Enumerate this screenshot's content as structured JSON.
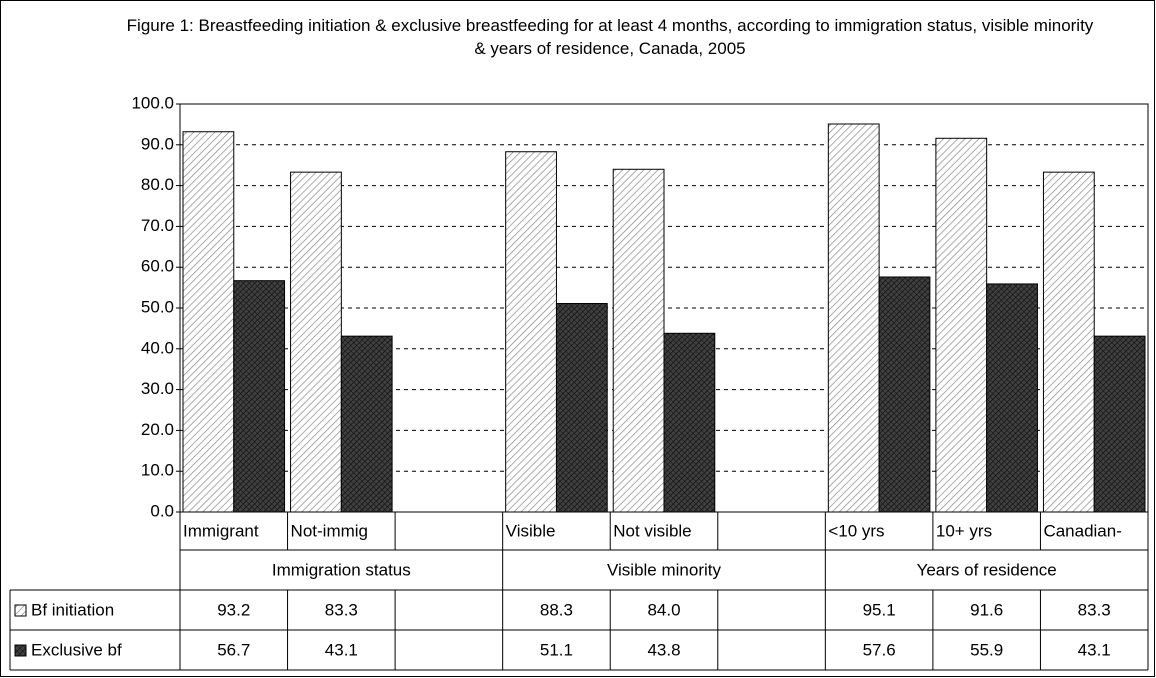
{
  "chart_data": {
    "type": "bar",
    "title": "Figure 1: Breastfeeding initiation & exclusive breastfeeding for at least 4 months, according to immigration status, visible minority & years of residence, Canada, 2005",
    "categories": [
      "Immigrant",
      "Not-immig",
      null,
      "Visible",
      "Not visible",
      null,
      "<10 yrs",
      "10+ yrs",
      "Canadian-"
    ],
    "groups": [
      "Immigration status",
      "Visible minority",
      "Years of residence"
    ],
    "series": [
      {
        "name": "Bf initiation",
        "color": "#ffffff",
        "values": [
          93.2,
          83.3,
          null,
          88.3,
          84.0,
          null,
          95.1,
          91.6,
          83.3
        ],
        "value_labels": [
          "93.2",
          "83.3",
          null,
          "88.3",
          "84.0",
          null,
          "95.1",
          "91.6",
          "83.3"
        ]
      },
      {
        "name": "Exclusive bf",
        "color": "#404040",
        "values": [
          56.7,
          43.1,
          null,
          51.1,
          43.8,
          null,
          57.6,
          55.9,
          43.1
        ],
        "value_labels": [
          "56.7",
          "43.1",
          null,
          "51.1",
          "43.8",
          null,
          "57.6",
          "55.9",
          "43.1"
        ]
      }
    ],
    "ylim": [
      0,
      100
    ],
    "yticks": [
      {
        "value": 0,
        "label": "0.0"
      },
      {
        "value": 10,
        "label": "10.0"
      },
      {
        "value": 20,
        "label": "20.0"
      },
      {
        "value": 30,
        "label": "30.0"
      },
      {
        "value": 40,
        "label": "40.0"
      },
      {
        "value": 50,
        "label": "50.0"
      },
      {
        "value": 60,
        "label": "60.0"
      },
      {
        "value": 70,
        "label": "70.0"
      },
      {
        "value": 80,
        "label": "80.0"
      },
      {
        "value": 90,
        "label": "90.0"
      },
      {
        "value": 100,
        "label": "100.0"
      }
    ],
    "grid": true
  }
}
